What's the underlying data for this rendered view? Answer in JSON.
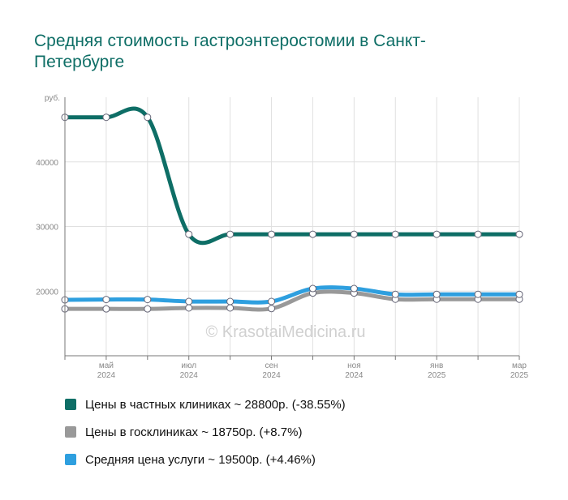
{
  "title": "Средняя стоимость гастроэнтеростомии в Санкт-Петербурге",
  "watermark": "© KrasotaiMedicina.ru",
  "chart_data": {
    "type": "line",
    "y_unit_label": "руб.",
    "ylim": [
      10000,
      50000
    ],
    "y_ticks": [
      "20000",
      "30000",
      "40000"
    ],
    "y_tick_values": [
      20000,
      30000,
      40000
    ],
    "x_labels": [
      {
        "month": "май",
        "year": "2024"
      },
      {
        "month": "июл",
        "year": "2024"
      },
      {
        "month": "сен",
        "year": "2024"
      },
      {
        "month": "ноя",
        "year": "2024"
      },
      {
        "month": "янв",
        "year": "2025"
      },
      {
        "month": "мар",
        "year": "2025"
      }
    ],
    "x": [
      "2024-04",
      "2024-05",
      "2024-06",
      "2024-07",
      "2024-08",
      "2024-09",
      "2024-10",
      "2024-11",
      "2024-12",
      "2025-01",
      "2025-02",
      "2025-03"
    ],
    "grid": true,
    "legend_placement": "bottom",
    "series": [
      {
        "name": "Цены в частных клиниках ~ 28800р. (-38.55%)",
        "color": "#0e6e66",
        "values": [
          46900,
          46900,
          46900,
          28800,
          28800,
          28800,
          28800,
          28800,
          28800,
          28800,
          28800,
          28800
        ]
      },
      {
        "name": "Цены в госклиниках ~ 18750р. (+8.7%)",
        "color": "#999999",
        "values": [
          17250,
          17250,
          17250,
          17400,
          17400,
          17300,
          19700,
          19700,
          18750,
          18750,
          18750,
          18750
        ]
      },
      {
        "name": "Средняя цена услуги ~ 19500р. (+4.46%)",
        "color": "#2e9fdf",
        "values": [
          18650,
          18700,
          18700,
          18400,
          18400,
          18400,
          20400,
          20400,
          19500,
          19500,
          19500,
          19500
        ]
      }
    ]
  }
}
